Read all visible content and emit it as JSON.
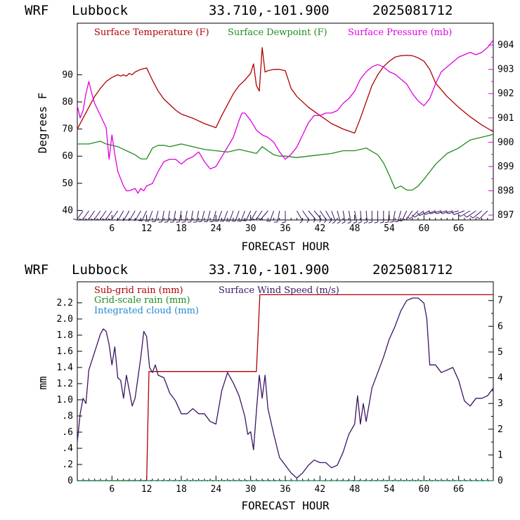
{
  "colors": {
    "temperature": "#b00000",
    "dewpoint": "#1e8c1e",
    "pressure": "#e000e0",
    "wind_barbs": "#3c1464",
    "subgrid_rain": "#b00000",
    "gridscale_rain": "#1e8c1e",
    "integrated_cloud": "#1e88d0",
    "wind_speed": "#3c1464",
    "axis": "#000000"
  },
  "chart_data": [
    {
      "type": "line",
      "header": {
        "model": "WRF",
        "location": "Lubbock",
        "coords": "33.710,-101.900",
        "run": "2025081712"
      },
      "xlabel": "FORECAST HOUR",
      "ylabel": "Degrees F",
      "xlim": [
        0,
        72
      ],
      "ylim": [
        36.5,
        109
      ],
      "y2lim": [
        896.8,
        904.9
      ],
      "xticks": [
        "6",
        "12",
        "18",
        "24",
        "30",
        "36",
        "42",
        "48",
        "54",
        "60",
        "66"
      ],
      "xtick_values": [
        6,
        12,
        18,
        24,
        30,
        36,
        42,
        48,
        54,
        60,
        66
      ],
      "yticks": [
        "40",
        "50",
        "60",
        "70",
        "80",
        "90"
      ],
      "ytick_values": [
        40,
        50,
        60,
        70,
        80,
        90
      ],
      "y2ticks": [
        "897",
        "898",
        "899",
        "900",
        "901",
        "902",
        "903",
        "904"
      ],
      "y2tick_values": [
        897,
        898,
        899,
        900,
        901,
        902,
        903,
        904
      ],
      "legend": [
        "Surface Temperature (F)",
        "Surface Dewpoint (F)",
        "Surface Pressure (mb)"
      ],
      "series": [
        {
          "name": "Surface Temperature (F)",
          "axis": "left",
          "color_key": "temperature",
          "x": [
            0,
            1,
            2,
            3,
            4,
            5,
            6,
            7,
            7.5,
            8,
            8.5,
            9,
            9.5,
            10,
            11,
            12,
            13,
            14,
            15,
            16,
            17,
            18,
            20,
            22,
            24,
            25,
            26,
            27,
            28,
            29,
            30,
            30.5,
            31,
            31.5,
            32,
            32.5,
            33,
            34,
            35,
            36,
            37,
            38,
            40,
            42,
            44,
            46,
            48,
            49,
            50,
            51,
            52,
            53,
            54,
            55,
            56,
            57,
            58,
            59,
            60,
            61,
            62,
            64,
            66,
            68,
            70,
            72
          ],
          "y": [
            70,
            74,
            78,
            82,
            85,
            87.5,
            89,
            90,
            89.5,
            90,
            89.5,
            90.5,
            90,
            91,
            92,
            92.5,
            88,
            84,
            81,
            79,
            77,
            75.5,
            74,
            72,
            70.5,
            75,
            79,
            83,
            86,
            88,
            90.5,
            94,
            86,
            84,
            100,
            91,
            91.5,
            92,
            92,
            91.5,
            85,
            82,
            78,
            75,
            72,
            70,
            68.5,
            74,
            80,
            86,
            90,
            93,
            95,
            96.5,
            97,
            97.2,
            97,
            96.2,
            95,
            92,
            87,
            82,
            78,
            74.5,
            71.5,
            69
          ]
        },
        {
          "name": "Surface Dewpoint (F)",
          "axis": "left",
          "color_key": "dewpoint",
          "x": [
            0,
            1,
            2,
            3,
            4,
            5,
            6,
            7,
            8,
            9,
            10,
            11,
            12,
            13,
            14,
            15,
            16,
            18,
            20,
            22,
            24,
            26,
            28,
            30,
            31,
            32,
            33,
            34,
            35,
            36,
            38,
            40,
            42,
            44,
            46,
            48,
            50,
            52,
            53,
            54,
            55,
            56,
            57,
            58,
            59,
            60,
            62,
            64,
            66,
            68,
            70,
            72
          ],
          "y": [
            64.5,
            64.5,
            64.5,
            65,
            65.5,
            64.5,
            64,
            63.5,
            62.5,
            61.5,
            60.5,
            59,
            59,
            63,
            64,
            64,
            63.5,
            64.5,
            63.5,
            62.5,
            62,
            61.5,
            62.5,
            61.5,
            61,
            63.5,
            62,
            60.5,
            60,
            60,
            59.5,
            60,
            60.5,
            61,
            62,
            62,
            63,
            60.5,
            57.5,
            53,
            48,
            49,
            47.5,
            47.5,
            49,
            51.5,
            57,
            61,
            63,
            66,
            67,
            68
          ]
        },
        {
          "name": "Surface Pressure (mb)",
          "axis": "right",
          "color_key": "pressure",
          "x": [
            0,
            0.5,
            1,
            1.5,
            2,
            2.5,
            3,
            4,
            5,
            5.5,
            6,
            6.5,
            7,
            8,
            8.5,
            9,
            10,
            10.5,
            11,
            11.5,
            12,
            13,
            14,
            15,
            16,
            17,
            18,
            19,
            20,
            21,
            22,
            23,
            24,
            25,
            26,
            27,
            28,
            28.5,
            29,
            30,
            31,
            32,
            33,
            34,
            35,
            36,
            37,
            38,
            39,
            40,
            41,
            42,
            43,
            44,
            45,
            46,
            47,
            48,
            49,
            50,
            51,
            52,
            53,
            54,
            55,
            56,
            57,
            58,
            59,
            60,
            61,
            62,
            63,
            64,
            65,
            66,
            67,
            68,
            69,
            70,
            71,
            72
          ],
          "y": [
            901.5,
            901,
            901.3,
            902,
            902.5,
            902,
            901.6,
            901.1,
            900.6,
            899.3,
            900.3,
            899.5,
            898.8,
            898.2,
            898,
            898,
            898.1,
            897.9,
            898.1,
            898,
            898.2,
            898.3,
            898.8,
            899.2,
            899.3,
            899.3,
            899.1,
            899.3,
            899.4,
            899.6,
            899.2,
            898.9,
            899,
            899.4,
            899.8,
            900.2,
            900.9,
            901.2,
            901.2,
            900.9,
            900.5,
            900.3,
            900.2,
            900,
            899.6,
            899.3,
            899.5,
            899.8,
            900.3,
            900.8,
            901.1,
            901.1,
            901.2,
            901.2,
            901.3,
            901.6,
            901.8,
            902.1,
            902.6,
            902.9,
            903.1,
            903.2,
            903.1,
            902.9,
            902.8,
            902.6,
            902.4,
            902.0,
            901.7,
            901.5,
            901.8,
            902.4,
            902.9,
            903.1,
            903.3,
            903.5,
            903.6,
            903.7,
            903.6,
            903.7,
            903.9,
            904.2
          ]
        }
      ],
      "wind_barbs": {
        "color_key": "wind_barbs",
        "x": [
          1,
          2,
          3,
          4,
          5,
          6,
          7,
          8,
          9,
          10,
          11,
          12,
          13,
          14,
          15,
          16,
          17,
          18,
          19,
          20,
          21,
          22,
          23,
          24,
          25,
          26,
          27,
          28,
          29,
          30,
          31,
          32,
          33,
          34,
          35,
          36,
          38,
          39,
          40,
          41,
          42,
          43,
          44,
          45,
          46,
          47,
          48,
          49,
          50,
          51,
          52,
          53,
          54,
          55,
          56,
          57,
          58,
          59,
          60,
          61,
          62,
          63,
          64,
          65,
          66,
          67,
          68,
          69,
          70,
          71
        ],
        "dir_deg": [
          215,
          215,
          215,
          215,
          215,
          215,
          215,
          210,
          210,
          210,
          210,
          205,
          200,
          195,
          190,
          190,
          190,
          190,
          190,
          190,
          190,
          195,
          195,
          195,
          200,
          200,
          200,
          200,
          200,
          205,
          210,
          215,
          220,
          200,
          190,
          180,
          150,
          145,
          140,
          140,
          145,
          150,
          160,
          165,
          170,
          170,
          170,
          175,
          175,
          180,
          180,
          180,
          185,
          190,
          195,
          205,
          215,
          225,
          235,
          245,
          250,
          255,
          255,
          255,
          255,
          250,
          240,
          235,
          230,
          225
        ]
      }
    },
    {
      "type": "line",
      "header": {
        "model": "WRF",
        "location": "Lubbock",
        "coords": "33.710,-101.900",
        "run": "2025081712"
      },
      "xlabel": "FORECAST HOUR",
      "ylabel": "mm",
      "xlim": [
        0,
        72
      ],
      "ylim": [
        0,
        2.46
      ],
      "y2lim": [
        0,
        7.73
      ],
      "xticks": [
        "6",
        "12",
        "18",
        "24",
        "30",
        "36",
        "42",
        "48",
        "54",
        "60",
        "66"
      ],
      "xtick_values": [
        6,
        12,
        18,
        24,
        30,
        36,
        42,
        48,
        54,
        60,
        66
      ],
      "yticks": [
        "0",
        ".2",
        ".4",
        ".6",
        ".8",
        "1.0",
        "1.2",
        "1.4",
        "1.6",
        "1.8",
        "2.0",
        "2.2"
      ],
      "ytick_values": [
        0,
        0.2,
        0.4,
        0.6,
        0.8,
        1.0,
        1.2,
        1.4,
        1.6,
        1.8,
        2.0,
        2.2
      ],
      "y2ticks": [
        "0",
        "1",
        "2",
        "3",
        "4",
        "5",
        "6",
        "7"
      ],
      "y2tick_values": [
        0,
        1,
        2,
        3,
        4,
        5,
        6,
        7
      ],
      "legend": [
        "Sub-grid rain (mm)",
        "Grid-scale rain (mm)",
        "Integrated cloud (mm)",
        "Surface Wind Speed (m/s)"
      ],
      "series": [
        {
          "name": "Sub-grid rain (mm)",
          "axis": "left",
          "color_key": "subgrid_rain",
          "x": [
            0,
            11.9,
            12,
            12.4,
            31,
            31.6,
            72
          ],
          "y": [
            0,
            0,
            0,
            1.35,
            1.35,
            2.3,
            2.3
          ]
        },
        {
          "name": "Grid-scale rain (mm)",
          "axis": "left",
          "color_key": "gridscale_rain",
          "x": [
            0,
            72
          ],
          "y": [
            0,
            0
          ]
        },
        {
          "name": "Integrated cloud (mm)",
          "axis": "left",
          "color_key": "integrated_cloud",
          "x": [
            0,
            4,
            8,
            12,
            16,
            20,
            24,
            28,
            32,
            36,
            40,
            44,
            48,
            52,
            56,
            60,
            64,
            68,
            72
          ],
          "y": [
            0,
            0,
            0,
            0,
            0,
            0,
            0,
            0,
            0,
            0,
            0,
            0,
            0,
            0,
            0,
            0,
            0,
            0,
            0
          ]
        },
        {
          "name": "Surface Wind Speed (m/s)",
          "axis": "right",
          "color_key": "wind_speed",
          "x": [
            0,
            0.5,
            1,
            1.5,
            2,
            3,
            4,
            4.5,
            5,
            5.5,
            6,
            6.5,
            7,
            7.5,
            8,
            8.5,
            9,
            9.5,
            10,
            10.5,
            11,
            11.5,
            12,
            12.5,
            13,
            13.5,
            14,
            15,
            16,
            17,
            18,
            19,
            20,
            21,
            22,
            23,
            24,
            25,
            26,
            27,
            28,
            29,
            29.5,
            30,
            30.5,
            31,
            31.5,
            32,
            32.5,
            33,
            34,
            35,
            36,
            37,
            38,
            39,
            40,
            41,
            42,
            43,
            44,
            45,
            46,
            47,
            48,
            48.5,
            49,
            49.5,
            50,
            51,
            52,
            53,
            54,
            55,
            56,
            57,
            58,
            59,
            60,
            60.5,
            61,
            62,
            63,
            64,
            65,
            66,
            67,
            68,
            69,
            70,
            71,
            72
          ],
          "y": [
            1.5,
            2.6,
            3.2,
            3,
            4.3,
            5,
            5.7,
            5.9,
            5.8,
            5.3,
            4.5,
            5.2,
            4,
            3.9,
            3.2,
            4.1,
            3.5,
            2.9,
            3.2,
            4,
            4.8,
            5.8,
            5.6,
            4.4,
            4.2,
            4.5,
            4.1,
            4.0,
            3.4,
            3.1,
            2.6,
            2.6,
            2.8,
            2.6,
            2.6,
            2.3,
            2.2,
            3.5,
            4.2,
            3.8,
            3.3,
            2.5,
            1.8,
            1.9,
            1.2,
            2.7,
            4.1,
            3.2,
            4.1,
            2.8,
            1.8,
            0.9,
            0.6,
            0.3,
            0.1,
            0.3,
            0.6,
            0.8,
            0.7,
            0.7,
            0.5,
            0.6,
            1.1,
            1.8,
            2.2,
            3.3,
            2.2,
            3.0,
            2.3,
            3.6,
            4.2,
            4.8,
            5.5,
            6.0,
            6.6,
            7.0,
            7.1,
            7.1,
            6.9,
            6.3,
            4.5,
            4.5,
            4.2,
            4.3,
            4.4,
            3.9,
            3.1,
            2.9,
            3.2,
            3.2,
            3.3,
            3.6
          ]
        }
      ]
    }
  ]
}
